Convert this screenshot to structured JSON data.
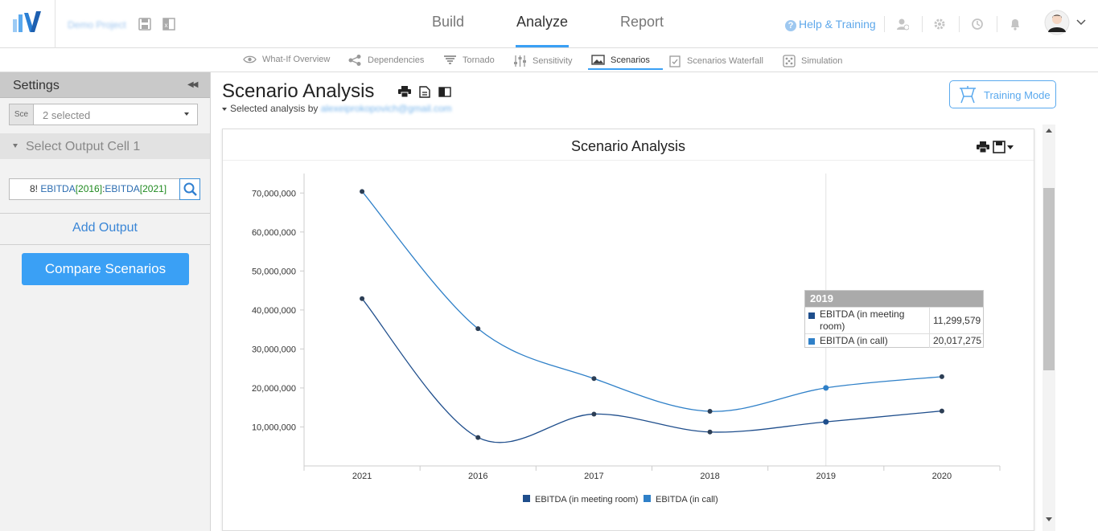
{
  "app": {
    "project_name": "Demo Project",
    "main_tabs": [
      {
        "label": "Build",
        "active": false
      },
      {
        "label": "Analyze",
        "active": true
      },
      {
        "label": "Report",
        "active": false
      }
    ],
    "help_label": "Help & Training",
    "accent_color": "#3aa0f5"
  },
  "subtabs": [
    {
      "label": "What-If Overview",
      "icon": "eye-icon",
      "active": false
    },
    {
      "label": "Dependencies",
      "icon": "share-icon",
      "active": false
    },
    {
      "label": "Tornado",
      "icon": "tornado-icon",
      "active": false
    },
    {
      "label": "Sensitivity",
      "icon": "sliders-icon",
      "active": false
    },
    {
      "label": "Scenarios",
      "icon": "image-icon",
      "active": true
    },
    {
      "label": "Scenarios Waterfall",
      "icon": "checklist-icon",
      "active": false
    },
    {
      "label": "Simulation",
      "icon": "dice-icon",
      "active": false
    }
  ],
  "settings": {
    "title": "Settings",
    "scenario_prefix": "Sce",
    "scenario_value": "2 selected",
    "output_section_title": "Select Output Cell 1",
    "formula": {
      "prefix": "8!",
      "part1": "EBITDA",
      "year1": "[2016]",
      "colon": ":",
      "part2": "EBITDA",
      "year2": "[2021]"
    },
    "add_output_label": "Add Output",
    "compare_button_label": "Compare Scenarios"
  },
  "main": {
    "title": "Scenario Analysis",
    "selected_by_label": "Selected analysis by",
    "selected_by_email": "alexeiprokopovich@gmail.com",
    "training_mode_label": "Training Mode"
  },
  "tooltip": {
    "title": "2019",
    "rows": [
      {
        "name": "EBITDA (in meeting room)",
        "value": "11,299,579",
        "color": "#1f4e8c"
      },
      {
        "name": "EBITDA (in call)",
        "value": "20,017,275",
        "color": "#2f80c8"
      }
    ]
  },
  "chart_data": {
    "type": "line",
    "title": "Scenario Analysis",
    "categories": [
      "2021",
      "2016",
      "2017",
      "2018",
      "2019",
      "2020"
    ],
    "y_ticks": [
      "10,000,000",
      "20,000,000",
      "30,000,000",
      "40,000,000",
      "50,000,000",
      "60,000,000",
      "70,000,000"
    ],
    "ylim": [
      0,
      75000000
    ],
    "grid": "vertical category lines",
    "legend_position": "bottom",
    "series": [
      {
        "name": "EBITDA (in meeting room)",
        "color": "#1f4e8c",
        "values": [
          42900000,
          7300000,
          13300000,
          8700000,
          11299579,
          14100000
        ]
      },
      {
        "name": "EBITDA (in call)",
        "color": "#2f80c8",
        "values": [
          70400000,
          35200000,
          22400000,
          14000000,
          20017275,
          22900000
        ]
      }
    ]
  }
}
